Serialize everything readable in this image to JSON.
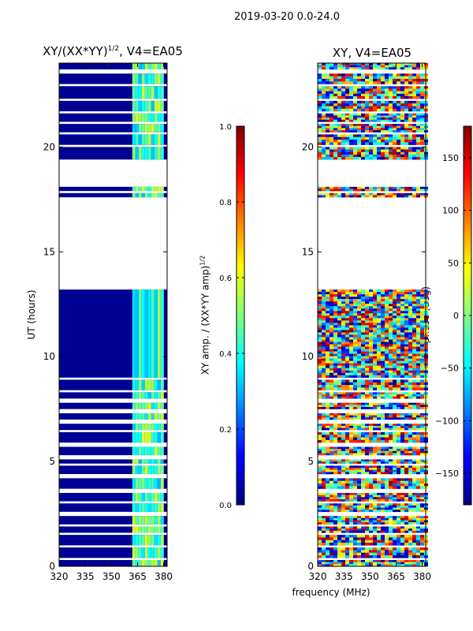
{
  "figure": {
    "title": "2019-03-20 0.0-24.0",
    "xlabel": "frequency (MHz)"
  },
  "colors": {
    "jet": [
      "#00007f",
      "#0000ff",
      "#007fff",
      "#00ffff",
      "#7fff7f",
      "#ffff00",
      "#ff7f00",
      "#ff0000",
      "#7f0000"
    ],
    "axis": "#000000"
  },
  "chart_data": [
    {
      "type": "heatmap",
      "title_main": "XY/(XX*YY)",
      "title_sup": "1/2",
      "title_suffix": ", V4=EA05",
      "xlabel": "",
      "ylabel": "UT (hours)",
      "xlim": [
        320,
        382
      ],
      "ylim": [
        0,
        24
      ],
      "xticks": [
        320,
        335,
        350,
        365,
        380
      ],
      "yticks": [
        0,
        5,
        10,
        15,
        20
      ],
      "colorbar": {
        "label_main": "XY amp. / (XX*YY amp)",
        "label_sup": "1/2",
        "range": [
          0.0,
          1.0
        ],
        "ticks": [
          "0.0",
          "0.2",
          "0.4",
          "0.6",
          "0.8",
          "1.0"
        ],
        "tick_values": [
          0.0,
          0.2,
          0.4,
          0.6,
          0.8,
          1.0
        ]
      },
      "value_description": "mostly near 0 (dark blue) except 362-380 MHz band with values 0.3-0.6",
      "low_band_value": 0.0,
      "high_band": [
        362,
        380
      ],
      "high_band_value_range": [
        0.3,
        0.6
      ]
    },
    {
      "type": "heatmap",
      "title": "XY, V4=EA05",
      "xlabel": "",
      "ylabel": "",
      "xlim": [
        320,
        382
      ],
      "ylim": [
        0,
        24
      ],
      "xticks": [
        320,
        335,
        350,
        365,
        380
      ],
      "yticks": [
        0,
        5,
        10,
        15,
        20
      ],
      "colorbar": {
        "label": "phase (deg)",
        "range": [
          -180,
          180
        ],
        "ticks": [
          "150",
          "100",
          "50",
          "0",
          "−50",
          "−100",
          "−150"
        ],
        "tick_values": [
          150,
          100,
          50,
          0,
          -50,
          -100,
          -150
        ]
      },
      "value_description": "noisy phase values spanning -180 to 180 degrees"
    }
  ],
  "data_coverage": {
    "description": "UT time intervals (hours) with data; white gaps elsewhere",
    "segments": [
      [
        0.0,
        0.3
      ],
      [
        0.4,
        0.9
      ],
      [
        1.0,
        1.5
      ],
      [
        1.6,
        1.9
      ],
      [
        2.0,
        2.4
      ],
      [
        2.6,
        3.0
      ],
      [
        3.1,
        3.5
      ],
      [
        3.7,
        4.2
      ],
      [
        4.4,
        4.8
      ],
      [
        4.9,
        5.1
      ],
      [
        5.3,
        5.7
      ],
      [
        5.9,
        6.4
      ],
      [
        6.5,
        6.8
      ],
      [
        7.0,
        7.3
      ],
      [
        7.5,
        7.8
      ],
      [
        8.0,
        8.3
      ],
      [
        8.4,
        8.9
      ],
      [
        9.0,
        13.2
      ],
      [
        17.6,
        17.8
      ],
      [
        17.9,
        18.1
      ],
      [
        19.4,
        20.0
      ],
      [
        20.1,
        20.6
      ],
      [
        20.7,
        21.1
      ],
      [
        21.2,
        21.6
      ],
      [
        21.7,
        22.2
      ],
      [
        22.3,
        22.9
      ],
      [
        23.0,
        23.5
      ],
      [
        23.7,
        24.0
      ]
    ]
  }
}
